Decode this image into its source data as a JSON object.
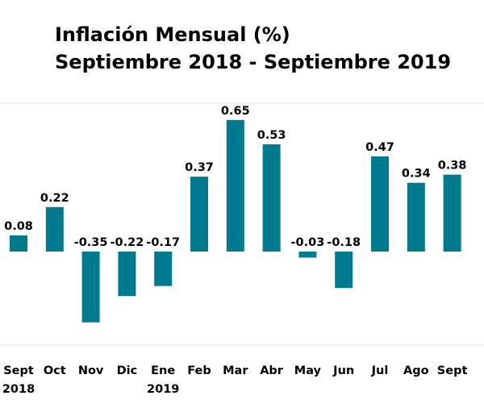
{
  "chart_data": {
    "type": "bar",
    "title": "Inflación Mensual (%)",
    "subtitle": "Septiembre 2018 - Septiembre 2019",
    "categories": [
      "Sept",
      "Oct",
      "Nov",
      "Dic",
      "Ene",
      "Feb",
      "Mar",
      "Abr",
      "May",
      "Jun",
      "Jul",
      "Ago",
      "Sept"
    ],
    "category_sublabels": [
      "2018",
      "",
      "",
      "",
      "2019",
      "",
      "",
      "",
      "",
      "",
      "",
      "",
      ""
    ],
    "values": [
      0.08,
      0.22,
      -0.35,
      -0.22,
      -0.17,
      0.37,
      0.65,
      0.53,
      -0.03,
      -0.18,
      0.47,
      0.34,
      0.38
    ],
    "value_labels": [
      "0.08",
      "0.22",
      "-0.35",
      "-0.22",
      "-0.17",
      "0.37",
      "0.65",
      "0.53",
      "-0.03",
      "-0.18",
      "0.47",
      "0.34",
      "0.38"
    ],
    "bar_color": "#007A8E",
    "xlabel": "",
    "ylabel": "",
    "ylim": [
      -0.45,
      0.72
    ],
    "grid": false,
    "legend": "none"
  }
}
